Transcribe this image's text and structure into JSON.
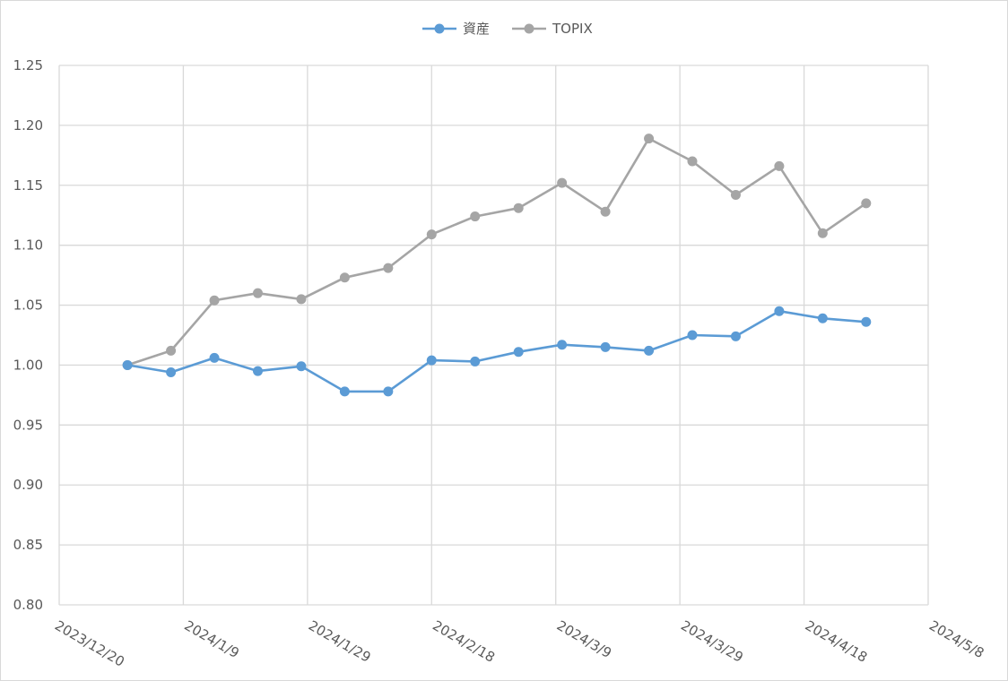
{
  "chart_data": {
    "type": "line",
    "title": "",
    "xlabel": "",
    "ylabel": "",
    "grid": true,
    "legend_position": "top",
    "ylim": [
      0.8,
      1.25
    ],
    "y_ticks": [
      "1.25",
      "1.20",
      "1.15",
      "1.10",
      "1.05",
      "1.00",
      "0.95",
      "0.90",
      "0.85",
      "0.80"
    ],
    "y_tick_values": [
      1.25,
      1.2,
      1.15,
      1.1,
      1.05,
      1.0,
      0.95,
      0.9,
      0.85,
      0.8
    ],
    "x_range": [
      "2023-12-20",
      "2024-05-08"
    ],
    "x_ticks": [
      {
        "label": "2023/12/20",
        "date": "2023-12-20"
      },
      {
        "label": "2024/1/9",
        "date": "2024-01-09"
      },
      {
        "label": "2024/1/29",
        "date": "2024-01-29"
      },
      {
        "label": "2024/2/18",
        "date": "2024-02-18"
      },
      {
        "label": "2024/3/9",
        "date": "2024-03-09"
      },
      {
        "label": "2024/3/29",
        "date": "2024-03-29"
      },
      {
        "label": "2024/4/18",
        "date": "2024-04-18"
      },
      {
        "label": "2024/5/8",
        "date": "2024-05-08"
      }
    ],
    "x": [
      "2023-12-31",
      "2024-01-07",
      "2024-01-14",
      "2024-01-21",
      "2024-01-28",
      "2024-02-04",
      "2024-02-11",
      "2024-02-18",
      "2024-02-25",
      "2024-03-03",
      "2024-03-10",
      "2024-03-17",
      "2024-03-24",
      "2024-03-31",
      "2024-04-07",
      "2024-04-14",
      "2024-04-21",
      "2024-04-28"
    ],
    "series": [
      {
        "name": "資産",
        "color": "#5b9bd5",
        "values": [
          1.0,
          0.994,
          1.006,
          0.995,
          0.999,
          0.978,
          0.978,
          1.004,
          1.003,
          1.011,
          1.017,
          1.015,
          1.012,
          1.025,
          1.024,
          1.045,
          1.039,
          1.036
        ]
      },
      {
        "name": "TOPIX",
        "color": "#a5a5a5",
        "values": [
          1.0,
          1.012,
          1.054,
          1.06,
          1.055,
          1.073,
          1.081,
          1.109,
          1.124,
          1.131,
          1.152,
          1.128,
          1.189,
          1.17,
          1.142,
          1.166,
          1.11,
          1.135
        ]
      }
    ]
  }
}
